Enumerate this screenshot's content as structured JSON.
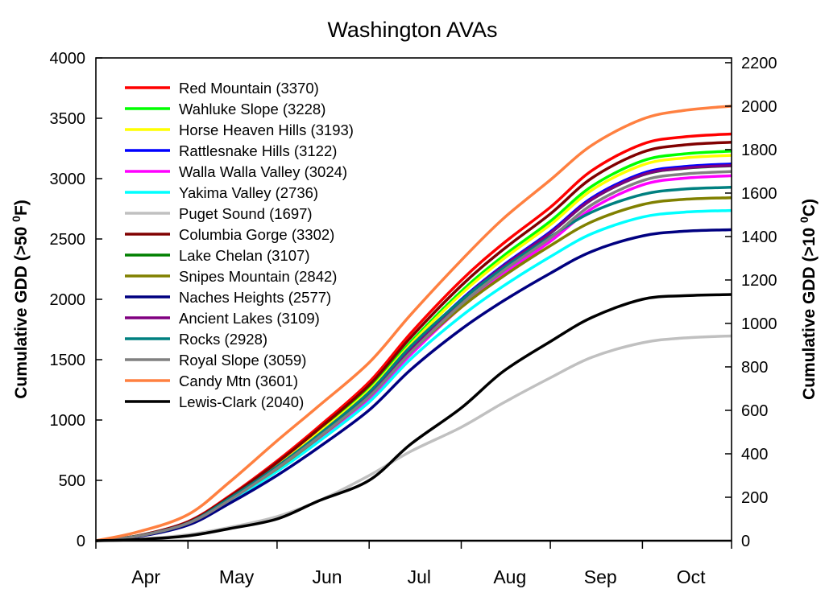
{
  "chart_data": {
    "type": "line",
    "title": "Washington AVAs",
    "ylabel": {
      "prefix": "Cumulative GDD (>50 ",
      "sup": "0",
      "suffix": "F)"
    },
    "y2label": {
      "prefix": "Cumulative GDD (>10 ",
      "sup": "0",
      "suffix": "C)"
    },
    "ylim": [
      0,
      4000
    ],
    "y2lim": [
      0,
      2222
    ],
    "yticks": [
      0,
      500,
      1000,
      1500,
      2000,
      2500,
      3000,
      3500,
      4000
    ],
    "y2ticks": [
      0,
      200,
      400,
      600,
      800,
      1000,
      1200,
      1400,
      1600,
      1800,
      2000,
      2200
    ],
    "xlim": [
      "04-01",
      "11-01"
    ],
    "month_labels": [
      "Apr",
      "May",
      "Jun",
      "Jul",
      "Aug",
      "Sep",
      "Oct"
    ],
    "grid": false,
    "legend_position": "top-left",
    "x": [
      "04-01",
      "04-15",
      "05-01",
      "05-15",
      "06-01",
      "06-15",
      "07-01",
      "07-15",
      "08-01",
      "08-15",
      "09-01",
      "09-15",
      "10-01",
      "10-15",
      "10-31"
    ],
    "series": [
      {
        "name": "Red Mountain (3370)",
        "color": "#ff0000",
        "values": [
          0,
          40,
          158,
          371,
          661,
          944,
          1314,
          1719,
          2157,
          2460,
          2763,
          3067,
          3286,
          3346,
          3370
        ]
      },
      {
        "name": "Wahluke Slope (3228)",
        "color": "#00ff00",
        "values": [
          0,
          39,
          152,
          355,
          633,
          904,
          1259,
          1646,
          2066,
          2356,
          2647,
          2937,
          3147,
          3205,
          3228
        ]
      },
      {
        "name": "Horse Heaven Hills (3193)",
        "color": "#ffff00",
        "values": [
          0,
          38,
          150,
          351,
          626,
          894,
          1245,
          1628,
          2044,
          2331,
          2618,
          2906,
          3113,
          3171,
          3193
        ]
      },
      {
        "name": "Rattlesnake Hills (3122)",
        "color": "#0000ff",
        "values": [
          0,
          37,
          147,
          343,
          612,
          874,
          1218,
          1592,
          1998,
          2279,
          2560,
          2841,
          3044,
          3100,
          3122
        ]
      },
      {
        "name": "Walla Walla Valley (3024)",
        "color": "#ff00ff",
        "values": [
          0,
          36,
          142,
          333,
          593,
          847,
          1179,
          1542,
          1935,
          2208,
          2480,
          2752,
          2948,
          3003,
          3024
        ]
      },
      {
        "name": "Yakima Valley (2736)",
        "color": "#00ffff",
        "values": [
          0,
          36,
          137,
          328,
          575,
          821,
          1149,
          1505,
          1860,
          2107,
          2353,
          2544,
          2681,
          2722,
          2736
        ]
      },
      {
        "name": "Puget Sound (1697)",
        "color": "#c0c0c0",
        "values": [
          0,
          10,
          50,
          110,
          200,
          330,
          540,
          740,
          940,
          1140,
          1350,
          1520,
          1640,
          1680,
          1697
        ]
      },
      {
        "name": "Columbia Gorge (3302)",
        "color": "#800000",
        "values": [
          0,
          40,
          155,
          363,
          647,
          925,
          1288,
          1684,
          2113,
          2410,
          2708,
          3005,
          3219,
          3279,
          3302
        ]
      },
      {
        "name": "Lake Chelan (3107)",
        "color": "#008000",
        "values": [
          0,
          37,
          146,
          342,
          609,
          870,
          1212,
          1585,
          1988,
          2268,
          2548,
          2827,
          3029,
          3085,
          3107
        ]
      },
      {
        "name": "Snipes Mountain (2842)",
        "color": "#808000",
        "values": [
          0,
          37,
          142,
          341,
          597,
          853,
          1194,
          1563,
          1933,
          2188,
          2444,
          2643,
          2785,
          2828,
          2842
        ]
      },
      {
        "name": "Naches Heights (2577)",
        "color": "#000080",
        "values": [
          0,
          34,
          129,
          309,
          541,
          773,
          1082,
          1417,
          1752,
          1984,
          2216,
          2397,
          2525,
          2564,
          2577
        ]
      },
      {
        "name": "Ancient Lakes (3109)",
        "color": "#800080",
        "values": [
          0,
          37,
          146,
          342,
          609,
          871,
          1213,
          1586,
          1990,
          2270,
          2549,
          2829,
          3031,
          3087,
          3109
        ]
      },
      {
        "name": "Rocks (2928)",
        "color": "#008080",
        "values": [
          0,
          38,
          146,
          351,
          615,
          878,
          1230,
          1610,
          1991,
          2255,
          2518,
          2723,
          2869,
          2913,
          2928
        ]
      },
      {
        "name": "Royal Slope (3059)",
        "color": "#808080",
        "values": [
          0,
          37,
          144,
          336,
          600,
          857,
          1193,
          1560,
          1958,
          2233,
          2508,
          2784,
          2983,
          3038,
          3059
        ]
      },
      {
        "name": "Candy Mtn (3601)",
        "color": "#ff8040",
        "values": [
          0,
          72,
          216,
          486,
          828,
          1116,
          1476,
          1873,
          2323,
          2665,
          2989,
          3277,
          3493,
          3565,
          3601
        ]
      },
      {
        "name": "Lewis-Clark (2040)",
        "color": "#000000",
        "values": [
          0,
          10,
          40,
          100,
          180,
          330,
          500,
          800,
          1100,
          1400,
          1650,
          1850,
          2000,
          2030,
          2040
        ]
      }
    ]
  }
}
